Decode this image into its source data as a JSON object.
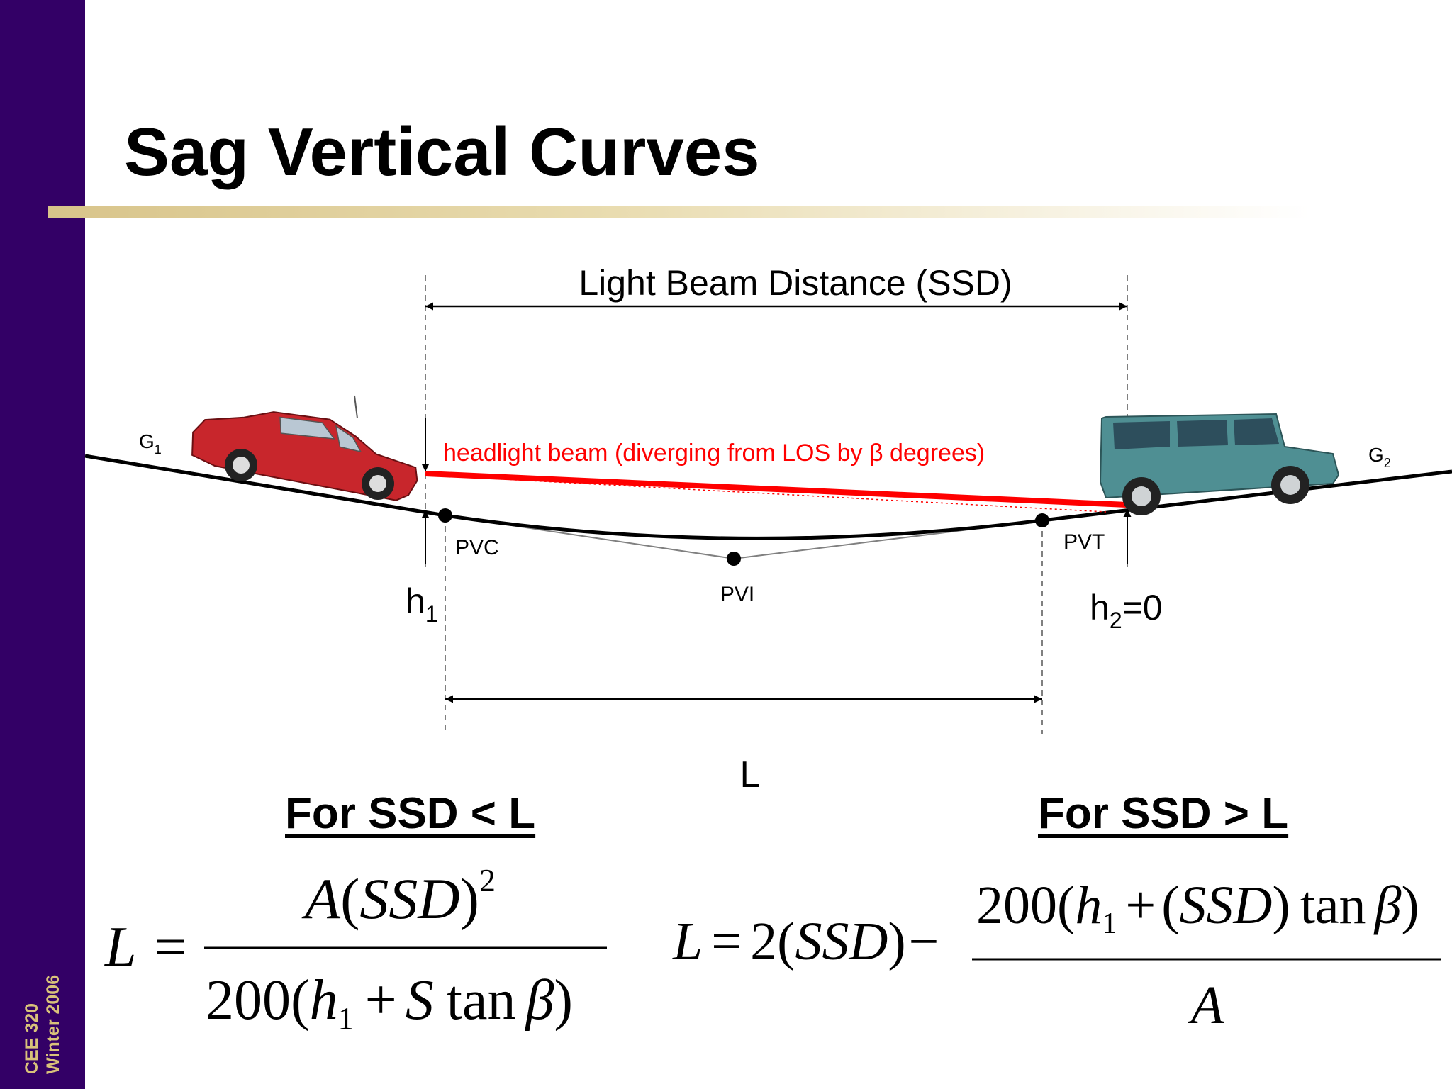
{
  "sidebar": {
    "line1": "CEE 320",
    "line2": "Winter 2006"
  },
  "title": "Sag Vertical Curves",
  "diagram": {
    "beam_distance_label": "Light Beam Distance (SSD)",
    "headlight_label": "headlight beam (diverging from LOS by β degrees)",
    "g1": {
      "base": "G",
      "sub": "1"
    },
    "g2": {
      "base": "G",
      "sub": "2"
    },
    "pvc": "PVC",
    "pvi": "PVI",
    "pvt": "PVT",
    "h1": {
      "base": "h",
      "sub": "1"
    },
    "h2": {
      "base": "h",
      "sub": "2",
      "suffix": "=0"
    },
    "curve_length": "L",
    "colors": {
      "beam": "#ff0000",
      "road": "#000000",
      "tangent": "#808080"
    },
    "vehicles": [
      "red-station-wagon",
      "teal-suv"
    ]
  },
  "sections": {
    "left_heading": "For SSD < L",
    "right_heading": "For SSD > L"
  },
  "formula_left": {
    "lhs": "L",
    "eq": "=",
    "num_A": "A",
    "num_SSD": "SSD",
    "num_exp": "2",
    "den_200": "200",
    "den_h": "h",
    "den_sub": "1",
    "den_plus": "+",
    "den_S": "S",
    "den_tan": "tan",
    "den_beta": "β"
  },
  "formula_right": {
    "lhs": "L",
    "eq": "=",
    "two": "2",
    "ssd": "SSD",
    "minus": "−",
    "num_200": "200",
    "num_h": "h",
    "num_sub": "1",
    "num_plus": "+",
    "num_SSD": "SSD",
    "num_tan": "tan",
    "num_beta": "β",
    "den_A": "A"
  }
}
